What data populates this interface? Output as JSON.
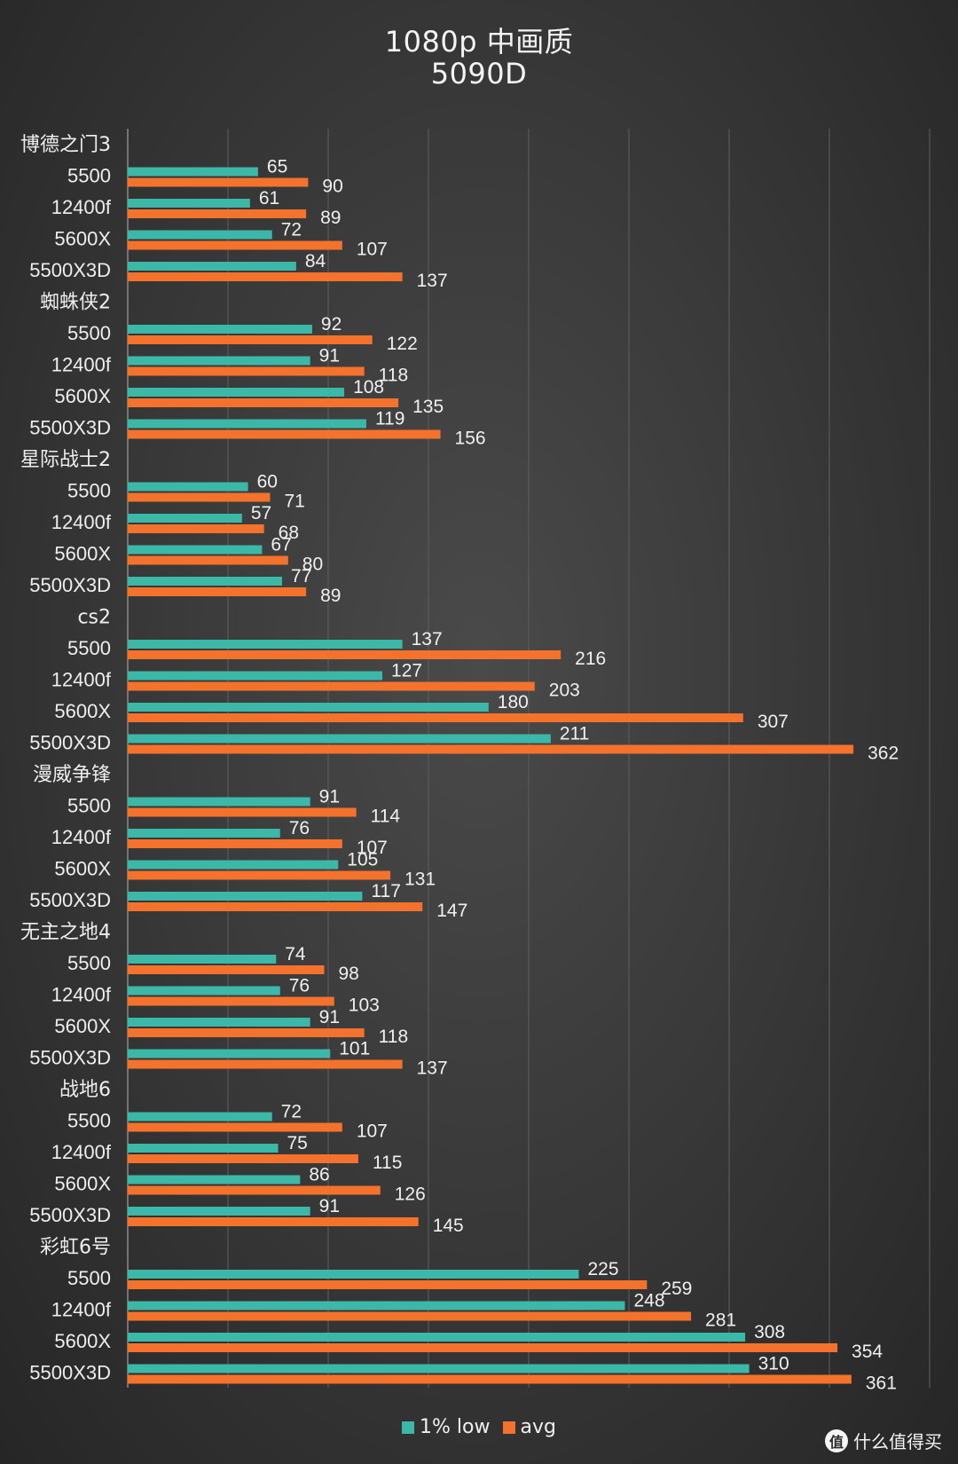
{
  "colors": {
    "low": "#3cb8a9",
    "avg": "#f4722b"
  },
  "chart_data": {
    "type": "bar",
    "orientation": "horizontal",
    "title": "1080p 中画质",
    "subtitle": "5090D",
    "xlim": [
      0,
      400
    ],
    "grid": true,
    "legend_position": "bottom",
    "series_names": [
      "1% low",
      "avg"
    ],
    "groups": [
      {
        "game": "博德之门3",
        "rows": [
          {
            "cpu": "5500",
            "low": 65,
            "avg": 90
          },
          {
            "cpu": "12400f",
            "low": 61,
            "avg": 89
          },
          {
            "cpu": "5600X",
            "low": 72,
            "avg": 107
          },
          {
            "cpu": "5500X3D",
            "low": 84,
            "avg": 137
          }
        ]
      },
      {
        "game": "蜘蛛侠2",
        "rows": [
          {
            "cpu": "5500",
            "low": 92,
            "avg": 122
          },
          {
            "cpu": "12400f",
            "low": 91,
            "avg": 118
          },
          {
            "cpu": "5600X",
            "low": 108,
            "avg": 135
          },
          {
            "cpu": "5500X3D",
            "low": 119,
            "avg": 156
          }
        ]
      },
      {
        "game": "星际战士2",
        "rows": [
          {
            "cpu": "5500",
            "low": 60,
            "avg": 71
          },
          {
            "cpu": "12400f",
            "low": 57,
            "avg": 68
          },
          {
            "cpu": "5600X",
            "low": 67,
            "avg": 80
          },
          {
            "cpu": "5500X3D",
            "low": 77,
            "avg": 89
          }
        ]
      },
      {
        "game": "cs2",
        "rows": [
          {
            "cpu": "5500",
            "low": 137,
            "avg": 216
          },
          {
            "cpu": "12400f",
            "low": 127,
            "avg": 203
          },
          {
            "cpu": "5600X",
            "low": 180,
            "avg": 307
          },
          {
            "cpu": "5500X3D",
            "low": 211,
            "avg": 362
          }
        ]
      },
      {
        "game": "漫威争锋",
        "rows": [
          {
            "cpu": "5500",
            "low": 91,
            "avg": 114
          },
          {
            "cpu": "12400f",
            "low": 76,
            "avg": 107
          },
          {
            "cpu": "5600X",
            "low": 105,
            "avg": 131
          },
          {
            "cpu": "5500X3D",
            "low": 117,
            "avg": 147
          }
        ]
      },
      {
        "game": "无主之地4",
        "rows": [
          {
            "cpu": "5500",
            "low": 74,
            "avg": 98
          },
          {
            "cpu": "12400f",
            "low": 76,
            "avg": 103
          },
          {
            "cpu": "5600X",
            "low": 91,
            "avg": 118
          },
          {
            "cpu": "5500X3D",
            "low": 101,
            "avg": 137
          }
        ]
      },
      {
        "game": "战地6",
        "rows": [
          {
            "cpu": "5500",
            "low": 72,
            "avg": 107
          },
          {
            "cpu": "12400f",
            "low": 75,
            "avg": 115
          },
          {
            "cpu": "5600X",
            "low": 86,
            "avg": 126
          },
          {
            "cpu": "5500X3D",
            "low": 91,
            "avg": 145
          }
        ]
      },
      {
        "game": "彩虹6号",
        "rows": [
          {
            "cpu": "5500",
            "low": 225,
            "avg": 259
          },
          {
            "cpu": "12400f",
            "low": 248,
            "avg": 281
          },
          {
            "cpu": "5600X",
            "low": 308,
            "avg": 354
          },
          {
            "cpu": "5500X3D",
            "low": 310,
            "avg": 361
          }
        ]
      }
    ]
  },
  "watermark": {
    "icon": "值",
    "text": "什么值得买"
  }
}
